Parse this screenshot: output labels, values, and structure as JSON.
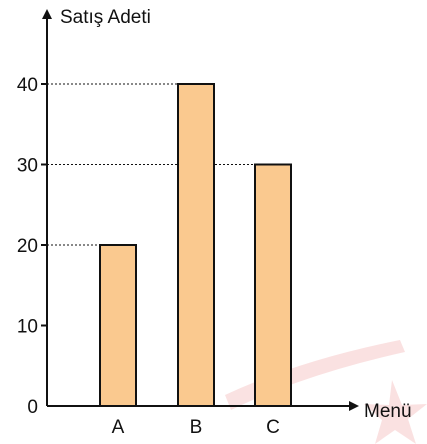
{
  "chart_data": {
    "type": "bar",
    "categories": [
      "A",
      "B",
      "C"
    ],
    "values": [
      20,
      40,
      30
    ],
    "title": "",
    "xlabel": "Menü",
    "ylabel": "Satış Adeti",
    "ylim": [
      0,
      40
    ],
    "yticks": [
      "0",
      "10",
      "20",
      "30",
      "40"
    ],
    "grid": false,
    "guide_lines": "dotted from bar tops to y-axis",
    "bar_color": "#FAC98F",
    "bar_edge_color": "#111111"
  }
}
